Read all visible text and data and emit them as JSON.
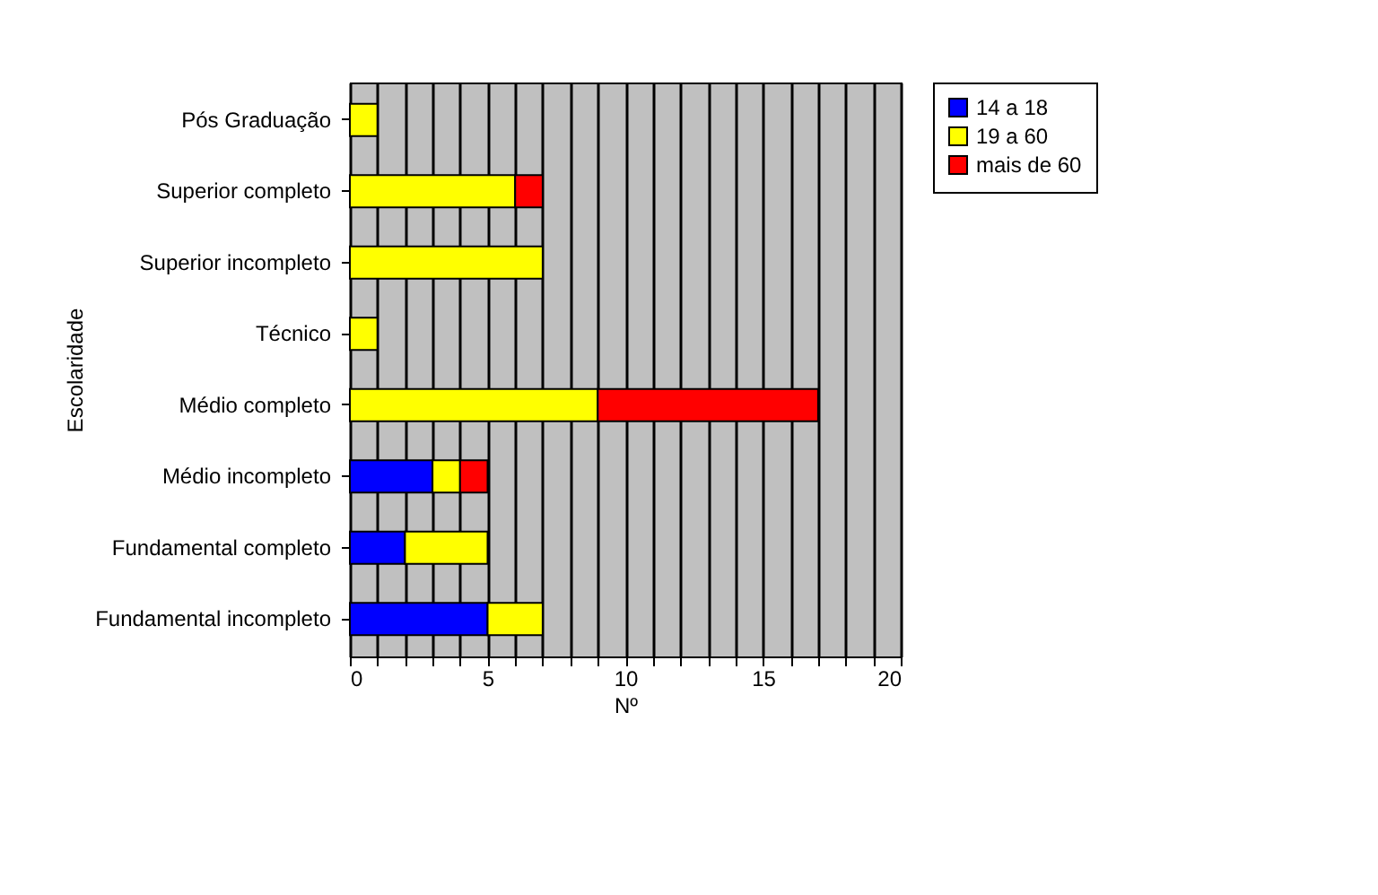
{
  "chart_data": {
    "type": "bar",
    "orientation": "horizontal",
    "stacked": true,
    "xlabel": "Nº",
    "ylabel": "Escolaridade",
    "categories": [
      "Pós Graduação",
      "Superior completo",
      "Superior incompleto",
      "Técnico",
      "Médio completo",
      "Médio incompleto",
      "Fundamental completo",
      "Fundamental incompleto"
    ],
    "series": [
      {
        "name": "14 a 18",
        "color": "#0000ff",
        "values": [
          null,
          null,
          null,
          null,
          null,
          3,
          2,
          5
        ]
      },
      {
        "name": "19 a 60",
        "color": "#ffff00",
        "values": [
          1,
          6,
          7,
          1,
          9,
          1,
          3,
          2
        ]
      },
      {
        "name": "mais de 60",
        "color": "#ff0000",
        "values": [
          null,
          1,
          null,
          null,
          8,
          1,
          null,
          null
        ]
      }
    ],
    "xlim": [
      0,
      20
    ],
    "xticks": [
      0,
      {
        "value": 1,
        "label": null
      },
      {
        "value": 2,
        "label": null
      },
      {
        "value": 3,
        "label": null
      },
      {
        "value": 4,
        "label": null
      },
      5,
      {
        "value": 6,
        "label": null
      },
      {
        "value": 7,
        "label": null
      },
      {
        "value": 8,
        "label": null
      },
      {
        "value": 9,
        "label": null
      },
      10,
      {
        "value": 11,
        "label": null
      },
      {
        "value": 12,
        "label": null
      },
      {
        "value": 13,
        "label": null
      },
      {
        "value": 14,
        "label": null
      },
      15,
      {
        "value": 16,
        "label": null
      },
      {
        "value": 17,
        "label": null
      },
      {
        "value": 18,
        "label": null
      },
      {
        "value": 19,
        "label": null
      },
      20
    ],
    "grid": "x",
    "legend": "right"
  }
}
